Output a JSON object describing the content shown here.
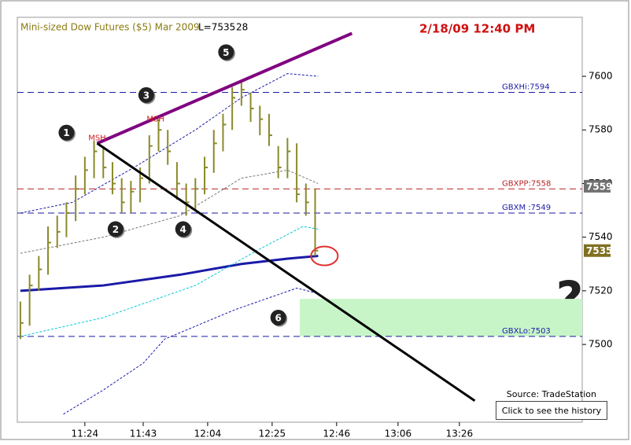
{
  "chart_data": {
    "type": "ohlc",
    "title": "Mini-sized Dow Futures ($5) Mar 2009",
    "last": "L=7535",
    "volume": 28,
    "timestamp": "2/18/09 12:40 PM",
    "source": "Source: TradeStation",
    "button": "Click to see the history",
    "question": "?",
    "x": [
      "11:03",
      "11:06",
      "11:09",
      "11:12",
      "11:15",
      "11:18",
      "11:21",
      "11:24",
      "11:27",
      "11:30",
      "11:33",
      "11:36",
      "11:39",
      "11:42",
      "11:45",
      "11:48",
      "11:51",
      "11:54",
      "11:57",
      "12:00",
      "12:03",
      "12:06",
      "12:09",
      "12:12",
      "12:15",
      "12:18",
      "12:21",
      "12:24",
      "12:27",
      "12:30",
      "12:33",
      "12:36",
      "12:39"
    ],
    "high": [
      7516,
      7526,
      7533,
      7544,
      7548,
      7553,
      7563,
      7570,
      7576,
      7574,
      7568,
      7562,
      7561,
      7566,
      7578,
      7584,
      7580,
      7568,
      7560,
      7562,
      7570,
      7580,
      7586,
      7596,
      7598,
      7594,
      7589,
      7586,
      7574,
      7577,
      7575,
      7560,
      7558
    ],
    "low": [
      7502,
      7507,
      7520,
      7526,
      7536,
      7540,
      7546,
      7556,
      7562,
      7562,
      7556,
      7549,
      7549,
      7553,
      7560,
      7572,
      7567,
      7554,
      7548,
      7550,
      7556,
      7564,
      7572,
      7580,
      7589,
      7583,
      7578,
      7574,
      7562,
      7562,
      7553,
      7548,
      7533
    ],
    "close": [
      7508,
      7522,
      7528,
      7538,
      7542,
      7549,
      7558,
      7565,
      7572,
      7566,
      7560,
      7553,
      7557,
      7562,
      7574,
      7580,
      7572,
      7560,
      7553,
      7558,
      7566,
      7575,
      7582,
      7592,
      7595,
      7588,
      7584,
      7578,
      7566,
      7572,
      7556,
      7553,
      7535
    ],
    "bar_color": "#8a8a2a",
    "xlim": [
      "11:02",
      "14:06"
    ],
    "xticks": [
      "11:24",
      "11:43",
      "12:04",
      "12:25",
      "12:46",
      "13:06",
      "13:26"
    ],
    "ylim": [
      7471,
      7622
    ],
    "yticks": [
      7500,
      7520,
      7540,
      7560,
      7580,
      7600
    ],
    "levels": [
      {
        "value": 7594,
        "label": "GBXHi:7594",
        "color": "#1a1aa8"
      },
      {
        "value": 7558,
        "label": "GBXPP:7558",
        "color": "#b82020"
      },
      {
        "value": 7549,
        "label": "GBXM :7549",
        "color": "#1a1aa8"
      },
      {
        "value": 7503,
        "label": "GBXLo:7503",
        "color": "#1a1aa8"
      }
    ],
    "price_tags": [
      {
        "value": 7559,
        "color": "#707070"
      },
      {
        "value": 7535,
        "color": "#807020"
      }
    ],
    "overlays": [
      {
        "color": "#1a1aa8",
        "width": 3,
        "x": [
          "11:03",
          "11:30",
          "11:55",
          "12:15",
          "12:30",
          "12:40"
        ],
        "values": [
          7520,
          7522,
          7526,
          7530,
          7532,
          7533
        ]
      },
      {
        "color": "#1a1aa8",
        "width": 1,
        "x": [
          "11:03",
          "11:20",
          "11:40",
          "12:00",
          "12:15",
          "12:30",
          "12:40"
        ],
        "values": [
          7549,
          7553,
          7566,
          7580,
          7592,
          7601,
          7600
        ]
      },
      {
        "color": "#1a1aa8",
        "width": 1,
        "x": [
          "11:17",
          "11:30",
          "11:43",
          "11:50",
          "12:13",
          "12:33",
          "12:40"
        ],
        "values": [
          7474,
          7483,
          7493,
          7502,
          7513,
          7521,
          7519
        ]
      },
      {
        "color": "#00c8d8",
        "width": 1,
        "x": [
          "11:03",
          "11:30",
          "12:00",
          "12:20",
          "12:35",
          "12:40"
        ],
        "values": [
          7503,
          7510,
          7522,
          7535,
          7544,
          7543
        ]
      },
      {
        "color": "#777777",
        "width": 1,
        "x": [
          "11:03",
          "11:30",
          "11:55",
          "12:15",
          "12:30",
          "12:40"
        ],
        "values": [
          7534,
          7540,
          7548,
          7562,
          7565,
          7560
        ]
      }
    ],
    "trendlines": [
      {
        "color": "#800080",
        "width": 4,
        "x": [
          "11:28",
          "12:51"
        ],
        "values": [
          7575,
          7616
        ]
      },
      {
        "color": "#000000",
        "width": 3,
        "x": [
          "11:28",
          "13:31"
        ],
        "values": [
          7575,
          7479
        ]
      }
    ],
    "zone": {
      "x": [
        "12:34",
        "14:06"
      ],
      "values": [
        7503,
        7517
      ],
      "color": "#c8f5c8"
    },
    "highlight": {
      "x": "12:40",
      "value": 7533,
      "color": "#e03030"
    },
    "annotations": [
      {
        "label": "MSH",
        "x": "11:28",
        "value": 7577
      },
      {
        "label": "MSH",
        "x": "11:47",
        "value": 7584
      }
    ],
    "callouts": [
      {
        "label": "1",
        "x": "11:18",
        "value": 7579
      },
      {
        "label": "2",
        "x": "11:34",
        "value": 7543
      },
      {
        "label": "3",
        "x": "11:44",
        "value": 7593
      },
      {
        "label": "4",
        "x": "11:56",
        "value": 7543
      },
      {
        "label": "5",
        "x": "12:10",
        "value": 7609
      },
      {
        "label": "6",
        "x": "12:27",
        "value": 7510
      }
    ]
  }
}
